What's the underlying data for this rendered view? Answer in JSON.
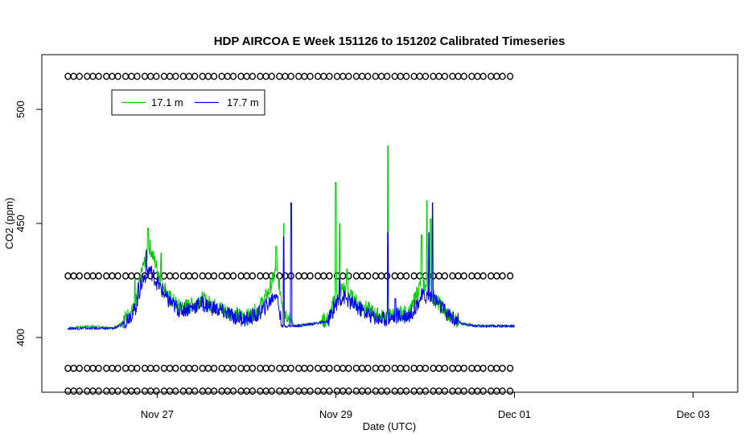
{
  "chart_data": {
    "type": "line",
    "title": "HDP AIRCOA E  Week 151126 to 151202  Calibrated Timeseries",
    "xlabel": "Date (UTC)",
    "ylabel": "CO2 (ppm)",
    "x_domain": [
      "2015-11-25T17:00",
      "2015-12-03T12:00"
    ],
    "ylim": [
      376,
      524
    ],
    "x_ticks": [
      {
        "label": "Nov 27",
        "date": "2015-11-27T00:00"
      },
      {
        "label": "Nov 29",
        "date": "2015-11-29T00:00"
      },
      {
        "label": "Dec 01",
        "date": "2015-12-01T00:00"
      },
      {
        "label": "Dec 03",
        "date": "2015-12-03T00:00"
      }
    ],
    "y_ticks": [
      400,
      450,
      500
    ],
    "grid": false,
    "legend": {
      "placement": "top-left",
      "entries": [
        {
          "label": "17.1 m",
          "color": "#00cc00"
        },
        {
          "label": "17.7 m",
          "color": "#0000ff"
        }
      ]
    },
    "series": [
      {
        "name": "17.1 m",
        "color": "#00cc00",
        "points": [
          [
            "2015-11-26T00:00",
            404
          ],
          [
            "2015-11-26T06:00",
            405
          ],
          [
            "2015-11-26T12:00",
            404
          ],
          [
            "2015-11-26T14:00",
            406
          ],
          [
            "2015-11-26T18:00",
            413
          ],
          [
            "2015-11-26T20:00",
            430
          ],
          [
            "2015-11-26T22:00",
            440
          ],
          [
            "2015-11-27T00:00",
            430
          ],
          [
            "2015-11-27T03:00",
            418
          ],
          [
            "2015-11-27T06:00",
            413
          ],
          [
            "2015-11-27T09:00",
            414
          ],
          [
            "2015-11-27T12:00",
            417
          ],
          [
            "2015-11-27T15:00",
            414
          ],
          [
            "2015-11-27T18:00",
            412
          ],
          [
            "2015-11-27T21:00",
            410
          ],
          [
            "2015-11-28T00:00",
            409
          ],
          [
            "2015-11-28T03:00",
            412
          ],
          [
            "2015-11-28T06:00",
            420
          ],
          [
            "2015-11-28T08:00",
            430
          ],
          [
            "2015-11-28T10:00",
            412
          ],
          [
            "2015-11-28T13:00",
            405
          ],
          [
            "2015-11-28T18:00",
            406
          ],
          [
            "2015-11-28T22:00",
            408
          ],
          [
            "2015-11-29T00:00",
            418
          ],
          [
            "2015-11-29T02:00",
            422
          ],
          [
            "2015-11-29T05:00",
            416
          ],
          [
            "2015-11-29T09:00",
            412
          ],
          [
            "2015-11-29T12:00",
            409
          ],
          [
            "2015-11-29T16:00",
            410
          ],
          [
            "2015-11-29T20:00",
            411
          ],
          [
            "2015-11-29T23:00",
            425
          ],
          [
            "2015-11-30T02:00",
            418
          ],
          [
            "2015-11-30T06:00",
            410
          ],
          [
            "2015-11-30T10:00",
            406
          ],
          [
            "2015-11-30T14:00",
            405
          ],
          [
            "2015-11-30T20:00",
            405
          ],
          [
            "2015-12-01T00:00",
            405
          ]
        ],
        "spikes": [
          [
            "2015-11-26T18:00",
            426
          ],
          [
            "2015-11-26T21:30",
            448
          ],
          [
            "2015-11-27T01:00",
            437
          ],
          [
            "2015-11-28T08:00",
            440
          ],
          [
            "2015-11-28T10:00",
            450
          ],
          [
            "2015-11-29T00:00",
            468
          ],
          [
            "2015-11-29T01:00",
            450
          ],
          [
            "2015-11-29T03:00",
            430
          ],
          [
            "2015-11-29T14:00",
            484
          ],
          [
            "2015-11-29T23:00",
            445
          ],
          [
            "2015-11-30T00:30",
            460
          ],
          [
            "2015-11-30T01:30",
            452
          ]
        ]
      },
      {
        "name": "17.7 m",
        "color": "#0000ff",
        "points": [
          [
            "2015-11-26T00:00",
            404
          ],
          [
            "2015-11-26T06:00",
            404
          ],
          [
            "2015-11-26T12:00",
            404
          ],
          [
            "2015-11-26T14:00",
            405
          ],
          [
            "2015-11-26T18:00",
            412
          ],
          [
            "2015-11-26T20:00",
            425
          ],
          [
            "2015-11-26T22:00",
            430
          ],
          [
            "2015-11-27T00:00",
            424
          ],
          [
            "2015-11-27T03:00",
            416
          ],
          [
            "2015-11-27T06:00",
            412
          ],
          [
            "2015-11-27T09:00",
            413
          ],
          [
            "2015-11-27T12:00",
            415
          ],
          [
            "2015-11-27T15:00",
            413
          ],
          [
            "2015-11-27T18:00",
            411
          ],
          [
            "2015-11-27T21:00",
            409
          ],
          [
            "2015-11-28T00:00",
            408
          ],
          [
            "2015-11-28T03:00",
            410
          ],
          [
            "2015-11-28T06:00",
            415
          ],
          [
            "2015-11-28T08:00",
            420
          ],
          [
            "2015-11-28T09:30",
            405
          ],
          [
            "2015-11-28T13:00",
            405
          ],
          [
            "2015-11-28T18:00",
            406
          ],
          [
            "2015-11-28T22:00",
            407
          ],
          [
            "2015-11-29T00:00",
            415
          ],
          [
            "2015-11-29T02:00",
            418
          ],
          [
            "2015-11-29T05:00",
            414
          ],
          [
            "2015-11-29T09:00",
            410
          ],
          [
            "2015-11-29T12:00",
            408
          ],
          [
            "2015-11-29T16:00",
            409
          ],
          [
            "2015-11-29T20:00",
            410
          ],
          [
            "2015-11-29T23:00",
            418
          ],
          [
            "2015-11-30T02:00",
            418
          ],
          [
            "2015-11-30T06:00",
            410
          ],
          [
            "2015-11-30T10:00",
            406
          ],
          [
            "2015-11-30T14:00",
            405
          ],
          [
            "2015-11-30T20:00",
            405
          ],
          [
            "2015-12-01T00:00",
            405
          ]
        ],
        "spikes": [
          [
            "2015-11-26T19:00",
            424
          ],
          [
            "2015-11-26T21:00",
            438
          ],
          [
            "2015-11-28T10:00",
            444
          ],
          [
            "2015-11-28T12:00",
            459
          ],
          [
            "2015-11-29T01:00",
            426
          ],
          [
            "2015-11-29T14:00",
            446
          ],
          [
            "2015-11-29T16:00",
            417
          ],
          [
            "2015-11-30T01:00",
            446
          ],
          [
            "2015-11-30T02:00",
            459
          ]
        ]
      }
    ],
    "marker_rows": [
      {
        "y": 514.5,
        "start": "2015-11-26T00:00",
        "end": "2015-12-01T00:00",
        "marker": "o"
      },
      {
        "y": 427.0,
        "start": "2015-11-26T00:00",
        "end": "2015-12-01T00:00",
        "marker": "o"
      },
      {
        "y": 386.5,
        "start": "2015-11-26T00:00",
        "end": "2015-12-01T00:00",
        "marker": "o"
      },
      {
        "y": 376.5,
        "start": "2015-11-26T00:00",
        "end": "2015-12-01T00:00",
        "marker": "o"
      }
    ]
  }
}
